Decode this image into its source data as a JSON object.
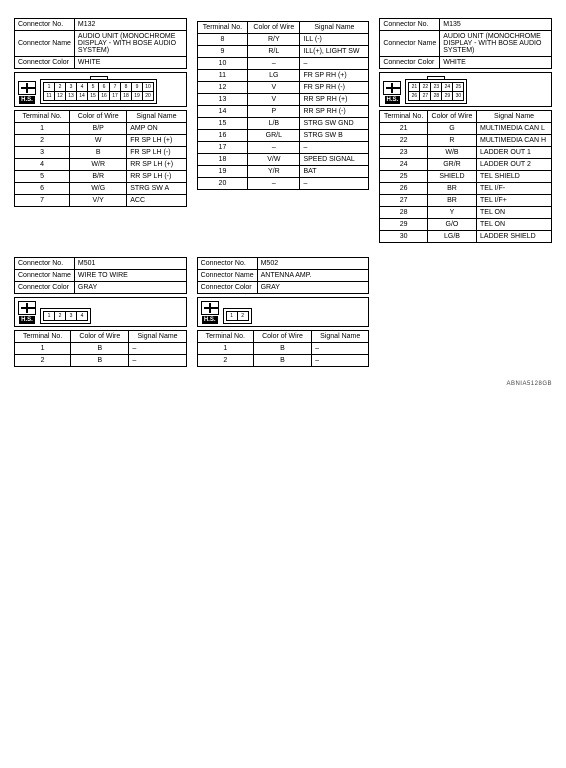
{
  "labels": {
    "connectorNo": "Connector No.",
    "connectorName": "Connector Name",
    "connectorColor": "Connector Color",
    "terminalNo": "Terminal No.",
    "colorOfWire": "Color of Wire",
    "signalName": "Signal Name",
    "hs": "H.S."
  },
  "footer_code": "ABNIA5128GB",
  "M132": {
    "no": "M132",
    "name": "AUDIO UNIT (MONOCHROME DISPLAY - WITH BOSE AUDIO SYSTEM)",
    "color": "WHITE",
    "diagram_cols": 10,
    "diagram_pins": [
      "1",
      "2",
      "3",
      "4",
      "5",
      "6",
      "7",
      "8",
      "9",
      "10",
      "11",
      "12",
      "13",
      "14",
      "15",
      "16",
      "17",
      "18",
      "19",
      "20"
    ],
    "tab": true,
    "rows": [
      {
        "t": "1",
        "w": "B/P",
        "s": "AMP ON"
      },
      {
        "t": "2",
        "w": "W",
        "s": "FR SP LH (+)"
      },
      {
        "t": "3",
        "w": "B",
        "s": "FR SP LH (-)"
      },
      {
        "t": "4",
        "w": "W/R",
        "s": "RR SP LH (+)"
      },
      {
        "t": "5",
        "w": "B/R",
        "s": "RR SP LH (-)"
      },
      {
        "t": "6",
        "w": "W/G",
        "s": "STRG SW A"
      },
      {
        "t": "7",
        "w": "V/Y",
        "s": "ACC"
      }
    ]
  },
  "M132b": {
    "rows": [
      {
        "t": "8",
        "w": "R/Y",
        "s": "ILL (-)"
      },
      {
        "t": "9",
        "w": "R/L",
        "s": "ILL(+), LIGHT SW"
      },
      {
        "t": "10",
        "w": "–",
        "s": "–"
      },
      {
        "t": "11",
        "w": "LG",
        "s": "FR SP RH (+)"
      },
      {
        "t": "12",
        "w": "V",
        "s": "FR SP RH (-)"
      },
      {
        "t": "13",
        "w": "V",
        "s": "RR SP RH (+)"
      },
      {
        "t": "14",
        "w": "P",
        "s": "RR SP RH (-)"
      },
      {
        "t": "15",
        "w": "L/B",
        "s": "STRG SW GND"
      },
      {
        "t": "16",
        "w": "GR/L",
        "s": "STRG SW B"
      },
      {
        "t": "17",
        "w": "–",
        "s": "–"
      },
      {
        "t": "18",
        "w": "V/W",
        "s": "SPEED SIGNAL"
      },
      {
        "t": "19",
        "w": "Y/R",
        "s": "BAT"
      },
      {
        "t": "20",
        "w": "–",
        "s": "–"
      }
    ]
  },
  "M135": {
    "no": "M135",
    "name": "AUDIO UNIT (MONOCHROME DISPLAY - WITH BOSE AUDIO SYSTEM)",
    "color": "WHITE",
    "diagram_cols": 5,
    "diagram_pins": [
      "21",
      "22",
      "23",
      "24",
      "25",
      "26",
      "27",
      "28",
      "29",
      "30"
    ],
    "tab": true,
    "rows": [
      {
        "t": "21",
        "w": "G",
        "s": "MULTIMEDIA CAN L"
      },
      {
        "t": "22",
        "w": "R",
        "s": "MULTIMEDIA CAN H"
      },
      {
        "t": "23",
        "w": "W/B",
        "s": "LADDER OUT 1"
      },
      {
        "t": "24",
        "w": "GR/R",
        "s": "LADDER OUT 2"
      },
      {
        "t": "25",
        "w": "SHIELD",
        "s": "TEL SHIELD"
      },
      {
        "t": "26",
        "w": "BR",
        "s": "TEL I/F-"
      },
      {
        "t": "27",
        "w": "BR",
        "s": "TEL I/F+"
      },
      {
        "t": "28",
        "w": "Y",
        "s": "TEL ON"
      },
      {
        "t": "29",
        "w": "G/O",
        "s": "TEL ON"
      },
      {
        "t": "30",
        "w": "LG/B",
        "s": "LADDER SHIELD"
      }
    ]
  },
  "M501": {
    "no": "M501",
    "name": "WIRE TO WIRE",
    "color": "GRAY",
    "diagram_cols": 4,
    "diagram_pins": [
      "1",
      "2",
      "3",
      "4"
    ],
    "tab": false,
    "rows": [
      {
        "t": "1",
        "w": "B",
        "s": "–"
      },
      {
        "t": "2",
        "w": "B",
        "s": "–"
      }
    ]
  },
  "M502": {
    "no": "M502",
    "name": "ANTENNA AMP.",
    "color": "GRAY",
    "diagram_cols": 2,
    "diagram_pins": [
      "1",
      "2"
    ],
    "tab": false,
    "rows": [
      {
        "t": "1",
        "w": "B",
        "s": "–"
      },
      {
        "t": "2",
        "w": "B",
        "s": "–"
      }
    ]
  }
}
